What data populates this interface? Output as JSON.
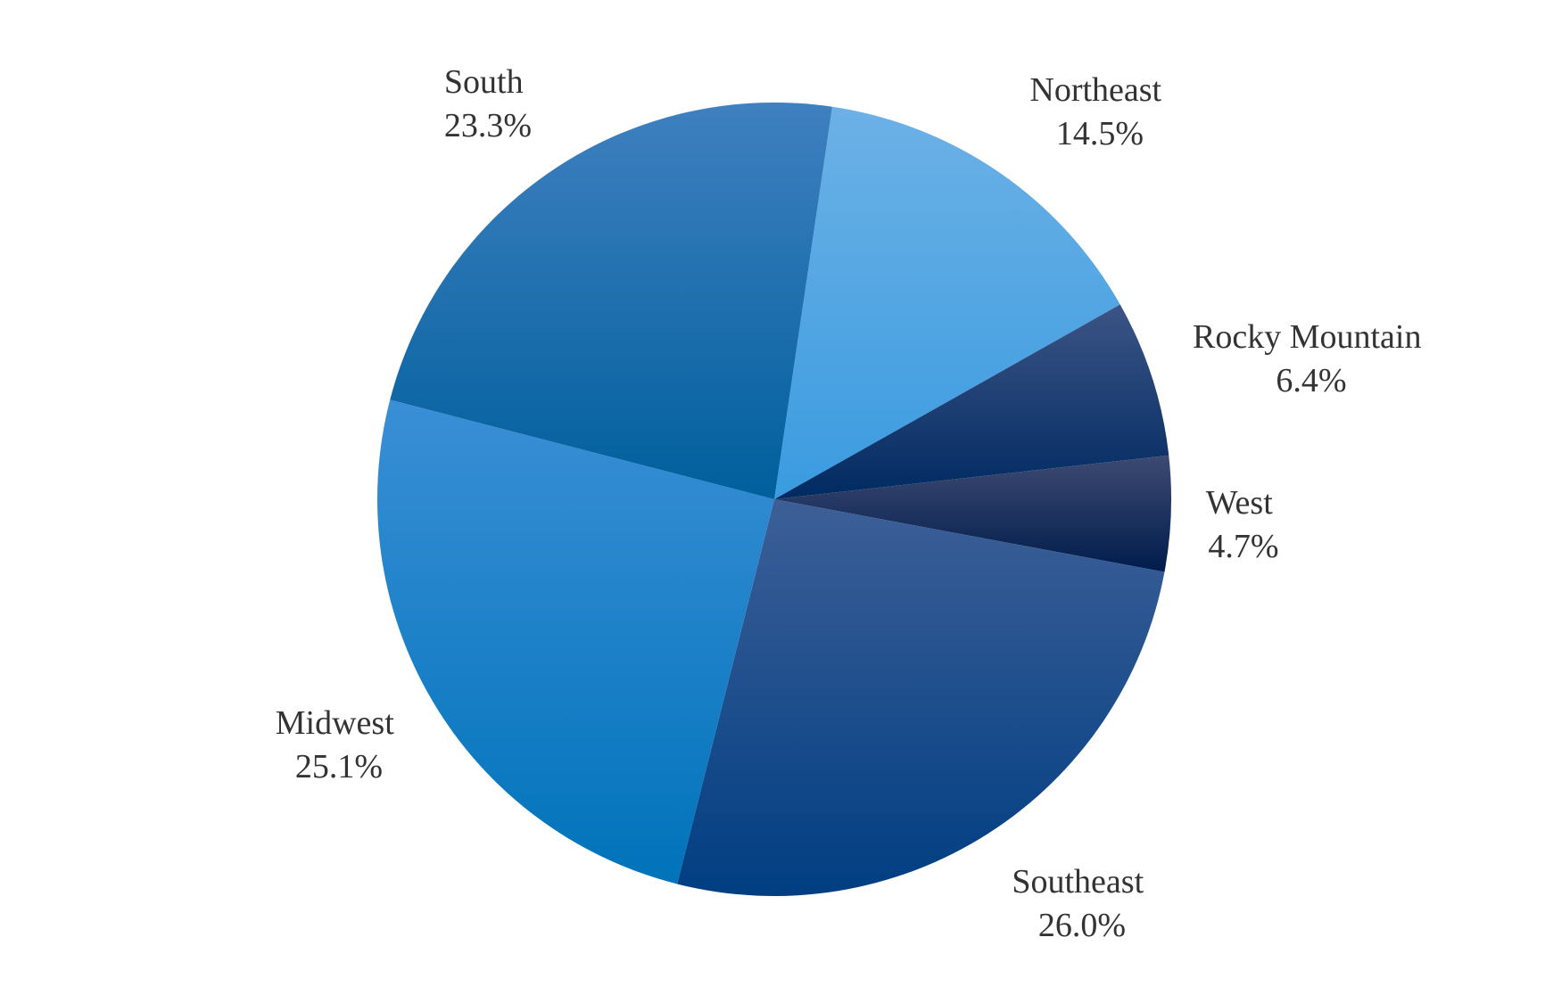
{
  "chart_data": {
    "type": "pie",
    "title": "",
    "slices": [
      {
        "label": "Northeast",
        "value": 14.5,
        "display": "14.5%",
        "color_top": "#6cb1e6",
        "color_bottom": "#3a9be0"
      },
      {
        "label": "Rocky Mountain",
        "value": 6.4,
        "display": "6.4%",
        "color_top": "#3c5485",
        "color_bottom": "#002a62"
      },
      {
        "label": "West",
        "value": 4.7,
        "display": "4.7%",
        "color_top": "#3d4a72",
        "color_bottom": "#001c4c"
      },
      {
        "label": "Southeast",
        "value": 26.0,
        "display": "26.0%",
        "color_top": "#3d5f97",
        "color_bottom": "#003e82"
      },
      {
        "label": "Midwest",
        "value": 25.1,
        "display": "25.1%",
        "color_top": "#3a8fd6",
        "color_bottom": "#0073ba"
      },
      {
        "label": "South",
        "value": 23.3,
        "display": "23.3%",
        "color_top": "#3f80c0",
        "color_bottom": "#005f9c"
      }
    ],
    "legend": "none"
  }
}
